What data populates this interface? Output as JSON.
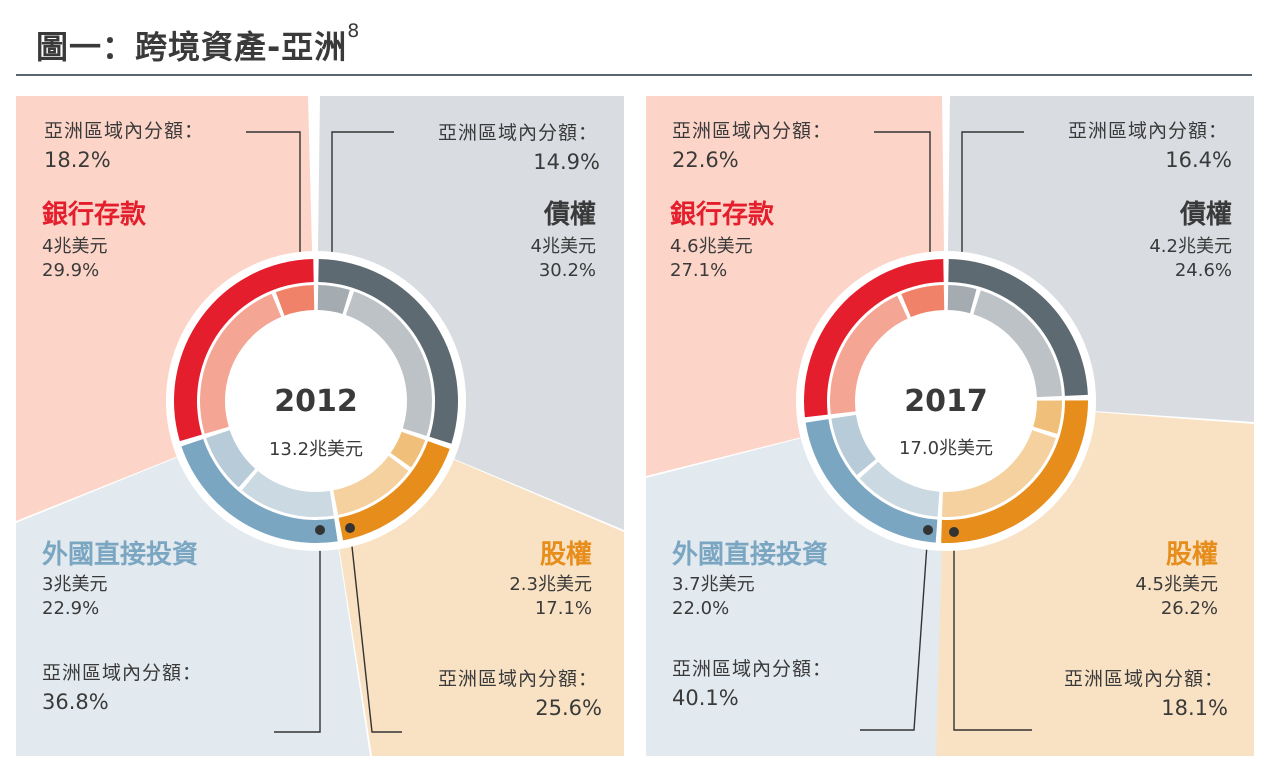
{
  "title": "圖一：跨境資產-亞洲",
  "title_sup": "8",
  "colors": {
    "bank_outer": "#e41e2c",
    "bank_inner": "#f0826a",
    "bank_bg": "#fcd5c8",
    "bond_outer": "#5e6a72",
    "bond_inner": "#a4abb1",
    "bond_bg": "#d9dde2",
    "equity_outer": "#e68d1c",
    "equity_inner": "#f0bf7a",
    "equity_bg": "#f9e2c4",
    "fdi_outer": "#7aa6c2",
    "fdi_inner": "#b7cbd8",
    "fdi_bg": "#e2e9ef"
  },
  "chart_data": [
    {
      "type": "pie",
      "year": "2012",
      "total": "13.2兆美元",
      "intra_region_label": "亞洲區域內分額：",
      "series": [
        {
          "key": "bank",
          "name": "銀行存款",
          "amount": "4兆美元",
          "pct": "29.9%",
          "value": 29.9,
          "intra_pct": "18.2%",
          "intra_value": 18.2
        },
        {
          "key": "bond",
          "name": "債權",
          "amount": "4兆美元",
          "pct": "30.2%",
          "value": 30.2,
          "intra_pct": "14.9%",
          "intra_value": 14.9
        },
        {
          "key": "equity",
          "name": "股權",
          "amount": "2.3兆美元",
          "pct": "17.1%",
          "value": 17.1,
          "intra_pct": "25.6%",
          "intra_value": 25.6
        },
        {
          "key": "fdi",
          "name": "外國直接投資",
          "amount": "3兆美元",
          "pct": "22.9%",
          "value": 22.9,
          "intra_pct": "36.8%",
          "intra_value": 36.8
        }
      ]
    },
    {
      "type": "pie",
      "year": "2017",
      "total": "17.0兆美元",
      "intra_region_label": "亞洲區域內分額：",
      "series": [
        {
          "key": "bank",
          "name": "銀行存款",
          "amount": "4.6兆美元",
          "pct": "27.1%",
          "value": 27.1,
          "intra_pct": "22.6%",
          "intra_value": 22.6
        },
        {
          "key": "bond",
          "name": "債權",
          "amount": "4.2兆美元",
          "pct": "24.6%",
          "value": 24.6,
          "intra_pct": "16.4%",
          "intra_value": 16.4
        },
        {
          "key": "equity",
          "name": "股權",
          "amount": "4.5兆美元",
          "pct": "26.2%",
          "value": 26.2,
          "intra_pct": "18.1%",
          "intra_value": 18.1
        },
        {
          "key": "fdi",
          "name": "外國直接投資",
          "amount": "3.7兆美元",
          "pct": "22.0%",
          "value": 22.0,
          "intra_pct": "40.1%",
          "intra_value": 40.1
        }
      ]
    }
  ]
}
